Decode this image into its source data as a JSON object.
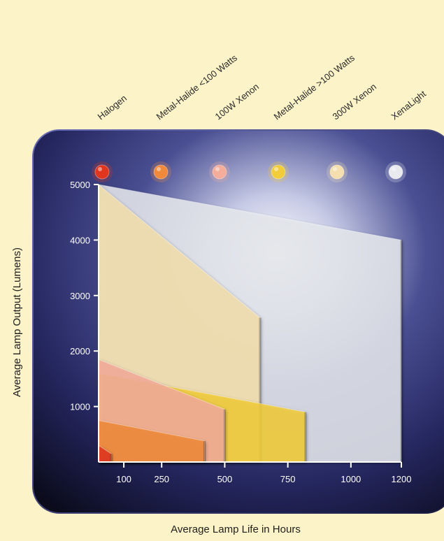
{
  "chart_data": {
    "type": "area",
    "xlabel": "Average Lamp Life in Hours",
    "ylabel": "Average Lamp Output (Lumens)",
    "x_ticks": [
      100,
      250,
      500,
      750,
      1000,
      1200
    ],
    "y_ticks": [
      1000,
      2000,
      3000,
      4000,
      5000
    ],
    "xlim": [
      0,
      1200
    ],
    "ylim": [
      0,
      5000
    ],
    "legend_position": "top",
    "series": [
      {
        "name": "Halogen",
        "color": "#e0361d",
        "x": [
          0,
          50
        ],
        "y": [
          300,
          150
        ]
      },
      {
        "name": "Metal-Halide <100 Watts",
        "color": "#f08a3a",
        "x": [
          0,
          420
        ],
        "y": [
          750,
          380
        ]
      },
      {
        "name": "100W Xenon",
        "color": "#f3ad9a",
        "x": [
          0,
          500
        ],
        "y": [
          1850,
          950
        ]
      },
      {
        "name": "Metal-Halide >100 Watts",
        "color": "#f2cd3a",
        "x": [
          0,
          820
        ],
        "y": [
          1600,
          900
        ]
      },
      {
        "name": "300W Xenon",
        "color": "#f5dfae",
        "x": [
          0,
          640
        ],
        "y": [
          5000,
          2600
        ]
      },
      {
        "name": "XenaLight",
        "color": "#e8eaee",
        "x": [
          0,
          1200
        ],
        "y": [
          5000,
          4000
        ]
      }
    ]
  }
}
